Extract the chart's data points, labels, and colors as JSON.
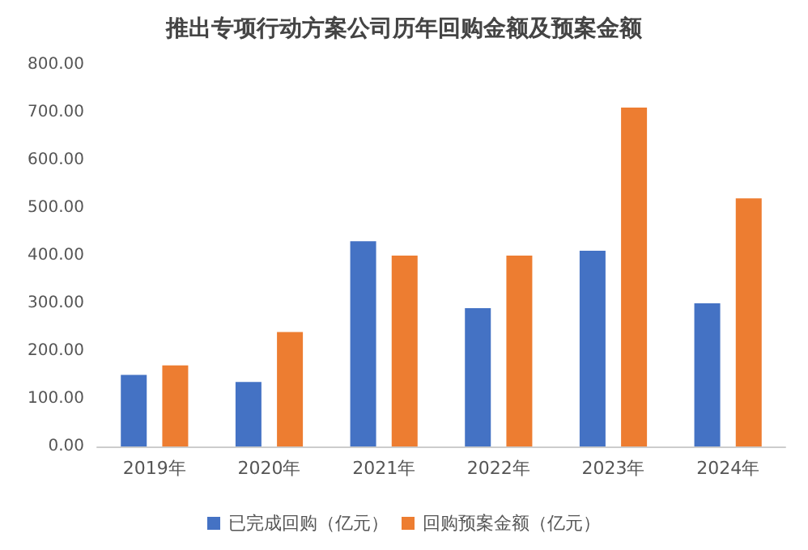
{
  "chart_data": {
    "type": "bar",
    "title": "推出专项行动方案公司历年回购金额及预案金额",
    "categories": [
      "2019年",
      "2020年",
      "2021年",
      "2022年",
      "2023年",
      "2024年"
    ],
    "series": [
      {
        "name": "已完成回购（亿元）",
        "color": "#4472c4",
        "values": [
          150,
          135,
          430,
          290,
          410,
          300
        ]
      },
      {
        "name": "回购预案金额（亿元）",
        "color": "#ed7d31",
        "values": [
          170,
          240,
          400,
          400,
          710,
          520
        ]
      }
    ],
    "ylim": [
      0,
      800
    ],
    "yticks": [
      {
        "value": 0,
        "label": "0.00"
      },
      {
        "value": 100,
        "label": "100.00"
      },
      {
        "value": 200,
        "label": "200.00"
      },
      {
        "value": 300,
        "label": "300.00"
      },
      {
        "value": 400,
        "label": "400.00"
      },
      {
        "value": 500,
        "label": "500.00"
      },
      {
        "value": 600,
        "label": "600.00"
      },
      {
        "value": 700,
        "label": "700.00"
      },
      {
        "value": 800,
        "label": "800.00"
      }
    ],
    "grid": false,
    "legend": "bottom"
  }
}
